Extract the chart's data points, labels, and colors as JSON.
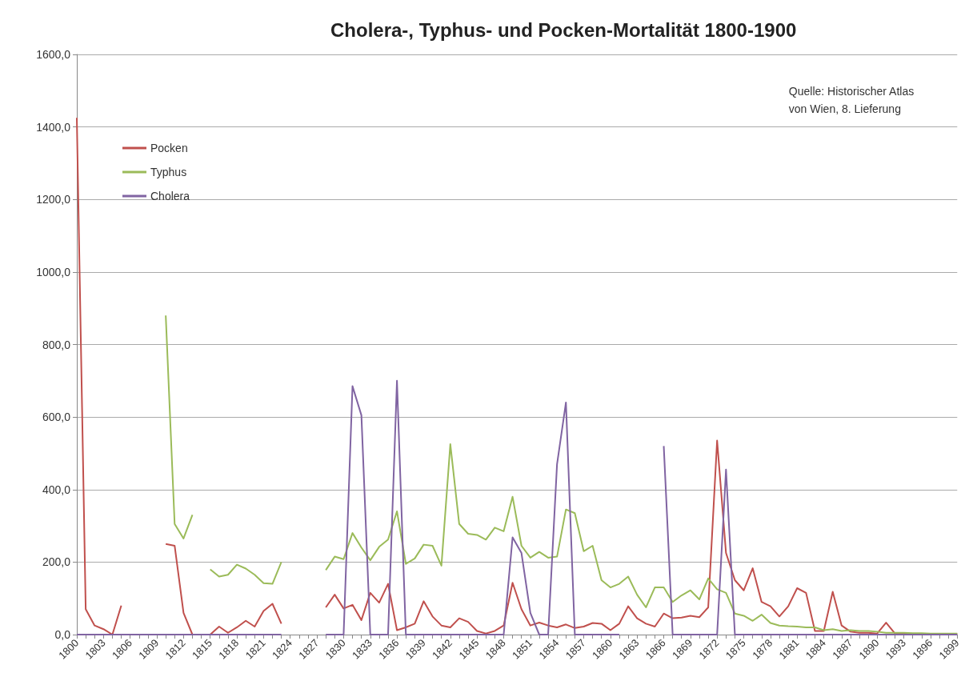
{
  "chart_data": {
    "type": "line",
    "title": "Cholera-, Typhus- und Pocken-Mortalität 1800-1900",
    "categories": [
      "1800",
      null,
      null,
      "1803",
      null,
      null,
      "1806",
      null,
      null,
      "1809",
      null,
      null,
      "1812",
      null,
      null,
      "1815",
      null,
      null,
      "1818",
      null,
      null,
      "1821",
      null,
      null,
      "1824",
      null,
      null,
      "1827",
      null,
      null,
      "1830",
      null,
      null,
      "1833",
      null,
      null,
      "1836",
      null,
      null,
      "1839",
      null,
      null,
      "1842",
      null,
      null,
      "1845",
      null,
      null,
      "1848",
      null,
      null,
      "1851",
      null,
      null,
      "1854",
      null,
      null,
      "1857",
      null,
      null,
      "1860",
      null,
      null,
      "1863",
      null,
      null,
      "1866",
      null,
      null,
      "1869",
      null,
      null,
      "1872",
      null,
      null,
      "1875",
      null,
      null,
      "1878",
      null,
      null,
      "1881",
      null,
      null,
      "1884",
      null,
      null,
      "1887",
      null,
      null,
      "1890",
      null,
      null,
      "1893",
      null,
      null,
      "1896",
      null,
      null,
      "1899"
    ],
    "series": [
      {
        "name": "Pocken",
        "color": "#c0504d",
        "values": [
          1425,
          70,
          25,
          15,
          0,
          80,
          null,
          null,
          null,
          null,
          250,
          245,
          60,
          0,
          0,
          0,
          22,
          5,
          20,
          38,
          22,
          65,
          85,
          30,
          null,
          null,
          null,
          null,
          75,
          110,
          72,
          82,
          40,
          115,
          88,
          140,
          12,
          20,
          30,
          92,
          50,
          25,
          20,
          45,
          35,
          10,
          3,
          10,
          25,
          143,
          70,
          25,
          33,
          25,
          20,
          28,
          18,
          22,
          32,
          30,
          12,
          30,
          78,
          45,
          30,
          22,
          58,
          45,
          47,
          52,
          48,
          75,
          535,
          225,
          150,
          122,
          183,
          90,
          78,
          50,
          78,
          128,
          115,
          10,
          10,
          118,
          25,
          8,
          5,
          5,
          3,
          33,
          3,
          2,
          2,
          2,
          2,
          2,
          2,
          2
        ]
      },
      {
        "name": "Typhus",
        "color": "#9bbb59",
        "values": [
          null,
          null,
          null,
          null,
          null,
          null,
          null,
          null,
          null,
          null,
          880,
          305,
          265,
          330,
          null,
          180,
          160,
          165,
          193,
          182,
          165,
          142,
          140,
          200,
          null,
          null,
          null,
          null,
          178,
          215,
          208,
          280,
          240,
          205,
          242,
          262,
          340,
          195,
          210,
          248,
          245,
          190,
          525,
          305,
          278,
          275,
          262,
          295,
          285,
          380,
          245,
          212,
          228,
          212,
          215,
          345,
          335,
          230,
          245,
          150,
          130,
          140,
          160,
          110,
          75,
          130,
          130,
          90,
          108,
          122,
          97,
          155,
          125,
          115,
          58,
          52,
          38,
          55,
          32,
          25,
          23,
          22,
          20,
          20,
          12,
          15,
          10,
          12,
          10,
          10,
          8,
          5,
          5,
          5,
          4,
          4,
          3,
          3,
          3,
          3
        ]
      },
      {
        "name": "Cholera",
        "color": "#8064a2",
        "values": [
          0,
          0,
          0,
          0,
          0,
          0,
          0,
          0,
          0,
          0,
          0,
          0,
          0,
          0,
          0,
          0,
          0,
          0,
          0,
          0,
          0,
          0,
          0,
          0,
          null,
          null,
          null,
          null,
          0,
          0,
          0,
          685,
          605,
          0,
          0,
          0,
          700,
          0,
          0,
          0,
          0,
          0,
          0,
          0,
          0,
          0,
          0,
          0,
          0,
          268,
          225,
          60,
          0,
          0,
          470,
          640,
          0,
          0,
          0,
          0,
          0,
          0,
          null,
          null,
          null,
          null,
          520,
          0,
          0,
          0,
          0,
          0,
          0,
          455,
          0,
          0,
          0,
          0,
          0,
          0,
          0,
          0,
          0,
          0,
          0,
          0,
          0,
          0,
          0,
          0,
          0,
          0,
          0,
          0,
          0,
          0,
          0,
          0,
          0,
          0
        ]
      }
    ],
    "ylim": [
      0,
      1600
    ],
    "yticks": [
      {
        "value": 0,
        "label": "0,0"
      },
      {
        "value": 200,
        "label": "200,0"
      },
      {
        "value": 400,
        "label": "400,0"
      },
      {
        "value": 600,
        "label": "600,0"
      },
      {
        "value": 800,
        "label": "800,0"
      },
      {
        "value": 1000,
        "label": "1000,0"
      },
      {
        "value": 1200,
        "label": "1200,0"
      },
      {
        "value": 1400,
        "label": "1400,0"
      },
      {
        "value": 1600,
        "label": "1600,0"
      }
    ],
    "grid": "y",
    "legend": "top left",
    "marker": "none",
    "line_style": "solid",
    "annotations": [
      "Quelle: Historischer Atlas\nvon Wien, 8. Lieferung"
    ]
  }
}
